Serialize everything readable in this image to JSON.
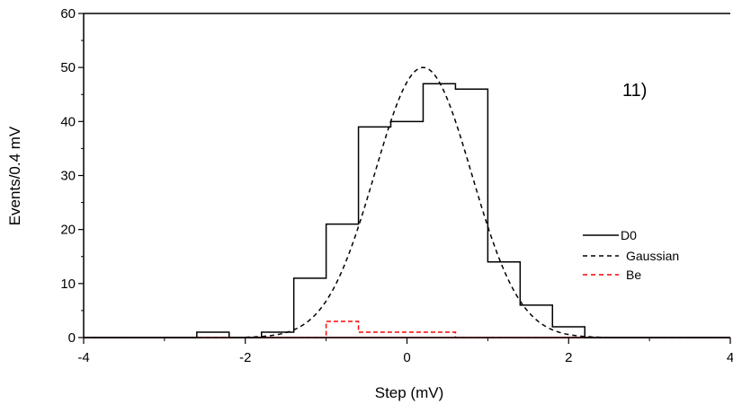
{
  "chart_data": {
    "type": "line",
    "xlabel": "Step  (mV)",
    "ylabel": "Events/0.4 mV",
    "xlim": [
      -4,
      4
    ],
    "ylim": [
      0,
      60
    ],
    "xticks": [
      -4,
      -2,
      0,
      2,
      4
    ],
    "yticks": [
      0,
      10,
      20,
      30,
      40,
      50,
      60
    ],
    "grid": false,
    "legend_position": "right",
    "annotation": "11)",
    "series": [
      {
        "name": "D0",
        "style": "solid-step",
        "color": "#000000",
        "bin_edges": [
          -4.2,
          -2.6,
          -2.2,
          -1.8,
          -1.4,
          -1.0,
          -0.6,
          -0.2,
          0.2,
          0.6,
          1.0,
          1.4,
          1.8,
          2.2,
          4.2
        ],
        "values": [
          0,
          1,
          0,
          1,
          11,
          21,
          39,
          40,
          47,
          46,
          14,
          6,
          2,
          0
        ]
      },
      {
        "name": "Gaussian",
        "style": "dashed-curve",
        "color": "#000000",
        "amplitude": 50,
        "mean": 0.2,
        "sigma": 0.6
      },
      {
        "name": "Be",
        "style": "dashed-step",
        "color": "#ff0000",
        "bin_edges": [
          -4.2,
          -1.0,
          -0.6,
          0.6,
          4.2
        ],
        "values": [
          0,
          3,
          1,
          0
        ]
      }
    ]
  }
}
